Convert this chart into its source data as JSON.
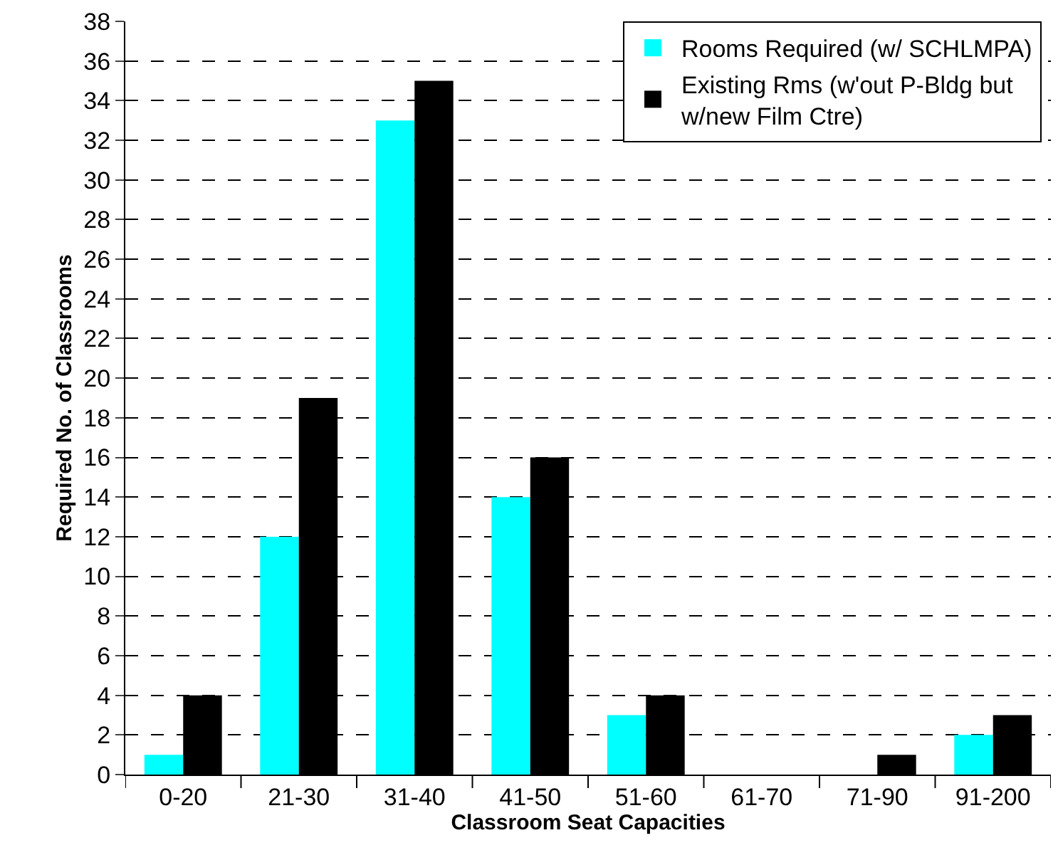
{
  "chart_data": {
    "type": "bar",
    "xlabel": "Classroom Seat Capacities",
    "ylabel": "Required No. of Classrooms",
    "categories": [
      "0-20",
      "21-30",
      "31-40",
      "41-50",
      "51-60",
      "61-70",
      "71-90",
      "91-200"
    ],
    "series": [
      {
        "name": "Rooms Required (w/ SCHLMPA)",
        "color": "#00ffff",
        "values": [
          1,
          12,
          33,
          14,
          3,
          0,
          0,
          2
        ]
      },
      {
        "name": "Existing Rms (w'out P-Bldg but w/new Film Ctre)",
        "color": "#000000",
        "values": [
          4,
          19,
          35,
          16,
          4,
          0,
          1,
          3
        ]
      }
    ],
    "ylim": [
      0,
      38
    ],
    "yticks": [
      0,
      2,
      4,
      6,
      8,
      10,
      12,
      14,
      16,
      18,
      20,
      22,
      24,
      26,
      28,
      30,
      32,
      34,
      36,
      38
    ],
    "grid": "y",
    "legend": "top right"
  }
}
